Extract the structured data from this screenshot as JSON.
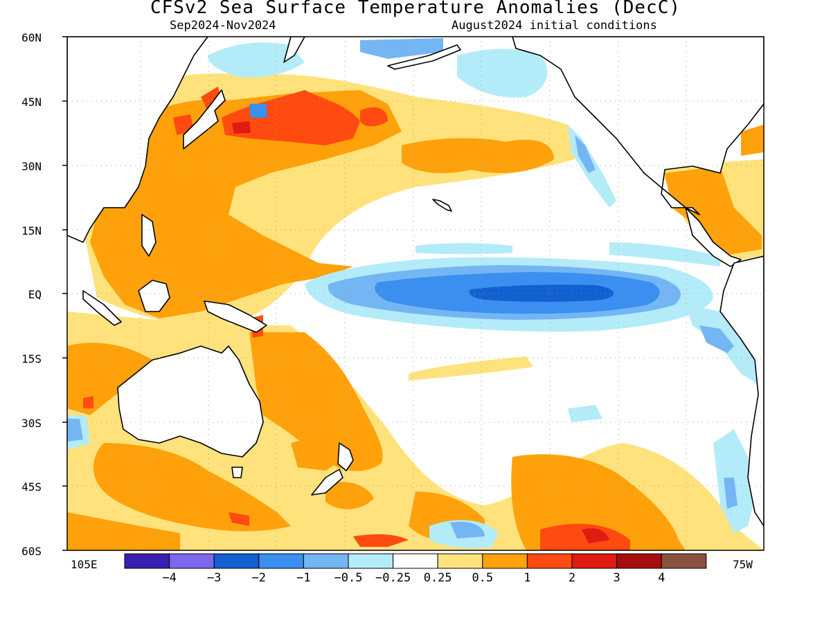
{
  "title": "CFSv2 Sea Surface Temperature Anomalies (DecC)",
  "subtitle_left": "Sep2024-Nov2024",
  "subtitle_right": "August2024 initial conditions",
  "lat_labels": [
    "60N",
    "45N",
    "30N",
    "15N",
    "EQ",
    "15S",
    "30S",
    "45S",
    "60S"
  ],
  "lon_labels": {
    "west": "105E",
    "east": "75W"
  },
  "colorbar": {
    "colors": [
      "#3b1fb0",
      "#7b68ee",
      "#1360d0",
      "#3a8ff0",
      "#74b6f4",
      "#b3ecf8",
      "#ffffff",
      "#ffe27c",
      "#ffa10b",
      "#ff4b10",
      "#e01b10",
      "#a80d0d",
      "#8b5040"
    ],
    "labels": [
      "-4",
      "-3",
      "-2",
      "-1",
      "-0.5",
      "-0.25",
      "0.25",
      "0.5",
      "1",
      "2",
      "3",
      "4"
    ]
  },
  "palette": {
    "cool3": "#1360d0",
    "cool2": "#3a8ff0",
    "cool1": "#74b6f4",
    "cool0": "#b3ecf8",
    "warm0": "#ffe27c",
    "warm1": "#ffa10b",
    "warm2": "#ff4b10",
    "warm3": "#e01b10",
    "warm4": "#a80d0d",
    "land_outline": "#000000",
    "grid": "#9a9a9a"
  }
}
